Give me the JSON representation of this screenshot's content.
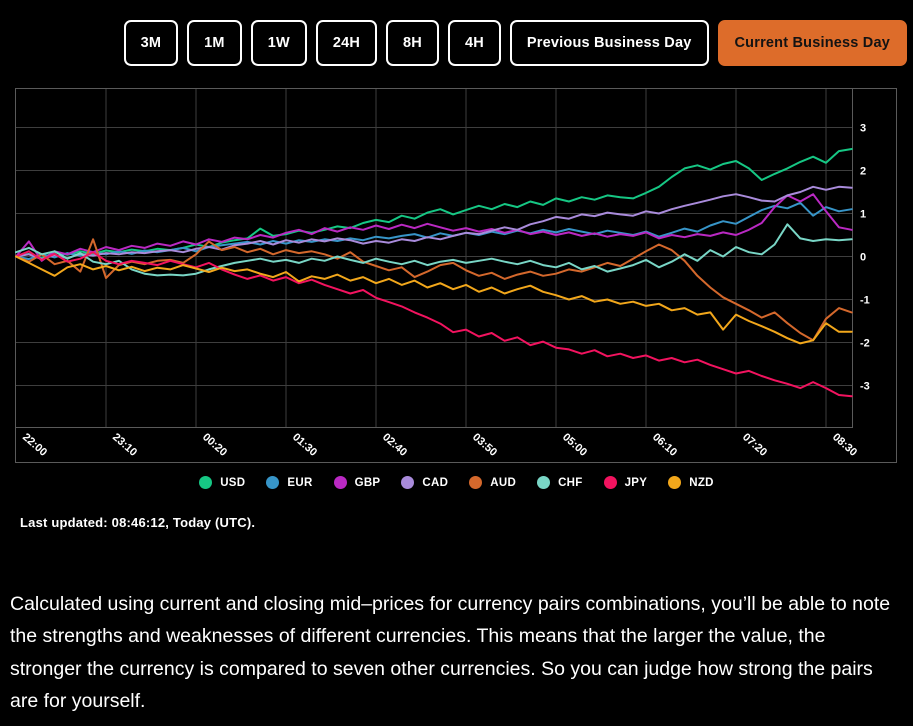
{
  "toolbar": {
    "active_bg": "#dd6c2a",
    "active_text": "#131313",
    "buttons": [
      {
        "label": "3M",
        "active": false
      },
      {
        "label": "1M",
        "active": false
      },
      {
        "label": "1W",
        "active": false
      },
      {
        "label": "24H",
        "active": false
      },
      {
        "label": "8H",
        "active": false
      },
      {
        "label": "4H",
        "active": false
      },
      {
        "label": "Previous Business Day",
        "active": false
      },
      {
        "label": "Current Business Day",
        "active": true
      }
    ]
  },
  "chart_data": {
    "type": "line",
    "title": "",
    "xlabel": "",
    "ylabel": "",
    "x_tick_labels": [
      "22:00",
      "23:10",
      "00:20",
      "01:30",
      "02:40",
      "03:50",
      "05:00",
      "06:10",
      "07:20",
      "08:30"
    ],
    "x_start": "22:00",
    "x_step_minutes": 10,
    "y_ticks": [
      3,
      2,
      1,
      0,
      -1,
      -2,
      -3
    ],
    "ylim": [
      -4,
      4
    ],
    "grid": true,
    "legend_position": "bottom",
    "series": [
      {
        "name": "USD",
        "color": "#16c784",
        "values": [
          0.0,
          0.06,
          -0.04,
          0.1,
          0.04,
          0.12,
          0.06,
          0.14,
          0.1,
          0.16,
          0.12,
          0.18,
          0.15,
          0.2,
          0.28,
          0.22,
          0.32,
          0.38,
          0.42,
          0.65,
          0.48,
          0.52,
          0.6,
          0.55,
          0.62,
          0.7,
          0.66,
          0.78,
          0.85,
          0.8,
          0.95,
          0.88,
          1.02,
          1.1,
          0.98,
          1.08,
          1.18,
          1.1,
          1.22,
          1.15,
          1.28,
          1.2,
          1.35,
          1.28,
          1.38,
          1.32,
          1.42,
          1.38,
          1.35,
          1.48,
          1.62,
          1.85,
          2.05,
          2.12,
          2.02,
          2.15,
          2.22,
          2.05,
          1.78,
          1.92,
          2.05,
          2.2,
          2.32,
          2.18,
          2.45,
          2.5
        ]
      },
      {
        "name": "EUR",
        "color": "#3795c8",
        "values": [
          0.0,
          -0.06,
          0.05,
          -0.02,
          0.08,
          0.02,
          0.1,
          0.05,
          0.12,
          0.06,
          0.14,
          0.1,
          0.15,
          0.2,
          0.12,
          0.22,
          0.26,
          0.3,
          0.34,
          0.28,
          0.36,
          0.3,
          0.38,
          0.34,
          0.4,
          0.36,
          0.42,
          0.38,
          0.46,
          0.42,
          0.48,
          0.52,
          0.44,
          0.54,
          0.48,
          0.55,
          0.5,
          0.58,
          0.52,
          0.6,
          0.54,
          0.62,
          0.56,
          0.64,
          0.58,
          0.52,
          0.6,
          0.55,
          0.5,
          0.58,
          0.46,
          0.55,
          0.65,
          0.58,
          0.72,
          0.82,
          0.76,
          0.92,
          1.08,
          1.18,
          1.12,
          1.25,
          0.95,
          1.15,
          1.05,
          1.1
        ]
      },
      {
        "name": "GBP",
        "color": "#ba29c3",
        "values": [
          0.0,
          0.35,
          -0.1,
          0.12,
          0.05,
          0.18,
          0.1,
          0.22,
          0.15,
          0.25,
          0.2,
          0.3,
          0.25,
          0.35,
          0.28,
          0.4,
          0.34,
          0.44,
          0.4,
          0.5,
          0.44,
          0.55,
          0.62,
          0.52,
          0.66,
          0.58,
          0.68,
          0.62,
          0.72,
          0.64,
          0.74,
          0.66,
          0.76,
          0.68,
          0.6,
          0.66,
          0.58,
          0.64,
          0.55,
          0.62,
          0.52,
          0.58,
          0.5,
          0.56,
          0.48,
          0.54,
          0.46,
          0.52,
          0.48,
          0.56,
          0.42,
          0.5,
          0.45,
          0.52,
          0.48,
          0.56,
          0.5,
          0.62,
          0.78,
          1.15,
          1.42,
          1.28,
          1.45,
          1.05,
          0.68,
          0.62
        ]
      },
      {
        "name": "CAD",
        "color": "#a98bdb",
        "values": [
          0.0,
          0.05,
          -0.06,
          0.03,
          -0.04,
          0.06,
          0.02,
          0.08,
          0.05,
          0.1,
          0.08,
          0.12,
          0.15,
          0.1,
          0.18,
          0.22,
          0.16,
          0.26,
          0.3,
          0.36,
          0.28,
          0.38,
          0.32,
          0.4,
          0.35,
          0.42,
          0.38,
          0.3,
          0.36,
          0.32,
          0.4,
          0.36,
          0.45,
          0.4,
          0.48,
          0.55,
          0.52,
          0.6,
          0.68,
          0.62,
          0.75,
          0.82,
          0.92,
          0.88,
          0.98,
          0.94,
          1.02,
          0.98,
          0.95,
          1.05,
          1.0,
          1.1,
          1.18,
          1.25,
          1.32,
          1.4,
          1.45,
          1.38,
          1.3,
          1.28,
          1.42,
          1.5,
          1.62,
          1.55,
          1.62,
          1.6
        ]
      },
      {
        "name": "AUD",
        "color": "#d4682c",
        "values": [
          0.0,
          -0.12,
          0.05,
          -0.18,
          -0.1,
          -0.35,
          0.4,
          -0.5,
          -0.2,
          -0.12,
          -0.18,
          -0.1,
          -0.08,
          -0.15,
          0.05,
          0.35,
          0.15,
          0.22,
          0.1,
          0.18,
          0.05,
          0.15,
          0.08,
          0.12,
          0.05,
          -0.05,
          0.1,
          -0.12,
          -0.22,
          -0.32,
          -0.25,
          -0.48,
          -0.35,
          -0.2,
          -0.15,
          -0.32,
          -0.45,
          -0.38,
          -0.52,
          -0.42,
          -0.35,
          -0.45,
          -0.4,
          -0.3,
          -0.35,
          -0.25,
          -0.15,
          -0.22,
          -0.05,
          0.12,
          0.28,
          0.15,
          -0.1,
          -0.45,
          -0.72,
          -0.95,
          -1.1,
          -1.25,
          -1.42,
          -1.3,
          -1.55,
          -1.78,
          -1.95,
          -1.45,
          -1.2,
          -1.3
        ]
      },
      {
        "name": "CHF",
        "color": "#79d6c6",
        "values": [
          0.1,
          0.2,
          0.05,
          0.12,
          -0.05,
          0.08,
          -0.12,
          -0.18,
          -0.1,
          -0.3,
          -0.4,
          -0.44,
          -0.42,
          -0.44,
          -0.4,
          -0.3,
          -0.22,
          -0.15,
          -0.1,
          -0.05,
          -0.12,
          -0.08,
          -0.15,
          -0.05,
          -0.1,
          0.0,
          -0.08,
          -0.15,
          -0.05,
          -0.12,
          -0.18,
          -0.1,
          -0.2,
          -0.12,
          -0.08,
          -0.15,
          -0.1,
          -0.05,
          -0.12,
          -0.18,
          -0.1,
          -0.2,
          -0.25,
          -0.15,
          -0.3,
          -0.22,
          -0.35,
          -0.28,
          -0.2,
          -0.08,
          -0.25,
          -0.12,
          0.05,
          -0.1,
          0.15,
          0.0,
          0.22,
          0.1,
          0.05,
          0.28,
          0.75,
          0.42,
          0.36,
          0.4,
          0.38,
          0.4
        ]
      },
      {
        "name": "JPY",
        "color": "#f2135f",
        "values": [
          0.0,
          0.12,
          -0.08,
          0.06,
          -0.12,
          -0.05,
          0.1,
          -0.1,
          -0.18,
          -0.1,
          -0.15,
          -0.2,
          -0.1,
          -0.18,
          -0.25,
          -0.15,
          -0.3,
          -0.42,
          -0.52,
          -0.44,
          -0.56,
          -0.48,
          -0.62,
          -0.54,
          -0.66,
          -0.76,
          -0.86,
          -0.78,
          -0.96,
          -1.06,
          -1.16,
          -1.3,
          -1.42,
          -1.56,
          -1.76,
          -1.7,
          -1.86,
          -1.78,
          -1.96,
          -1.88,
          -2.06,
          -1.98,
          -2.12,
          -2.16,
          -2.26,
          -2.18,
          -2.32,
          -2.26,
          -2.36,
          -2.3,
          -2.42,
          -2.36,
          -2.46,
          -2.4,
          -2.52,
          -2.62,
          -2.72,
          -2.66,
          -2.78,
          -2.88,
          -2.96,
          -3.06,
          -2.92,
          -3.06,
          -3.22,
          -3.25
        ]
      },
      {
        "name": "NZD",
        "color": "#f2a71b",
        "values": [
          0.0,
          -0.15,
          -0.3,
          -0.45,
          -0.25,
          -0.18,
          -0.3,
          -0.22,
          -0.32,
          -0.24,
          -0.34,
          -0.26,
          -0.3,
          -0.2,
          -0.28,
          -0.36,
          -0.26,
          -0.34,
          -0.3,
          -0.4,
          -0.48,
          -0.36,
          -0.58,
          -0.46,
          -0.52,
          -0.42,
          -0.56,
          -0.48,
          -0.62,
          -0.52,
          -0.66,
          -0.56,
          -0.72,
          -0.62,
          -0.76,
          -0.66,
          -0.82,
          -0.72,
          -0.86,
          -0.76,
          -0.68,
          -0.82,
          -0.9,
          -1.0,
          -0.92,
          -1.05,
          -1.0,
          -1.1,
          -1.05,
          -1.15,
          -1.1,
          -1.25,
          -1.2,
          -1.35,
          -1.3,
          -1.7,
          -1.35,
          -1.5,
          -1.62,
          -1.75,
          -1.9,
          -2.02,
          -1.95,
          -1.55,
          -1.75,
          -1.75
        ]
      }
    ]
  },
  "status": {
    "last_updated": "Last updated: 08:46:12, Today (UTC)."
  },
  "description": "Calculated using current and closing mid–prices for currency pairs combinations, you’ll be able to note the strengths and weaknesses of different currencies. This means that the larger the value, the stronger the currency is compared to seven other currencies. So you can judge how strong the pairs are for yourself."
}
